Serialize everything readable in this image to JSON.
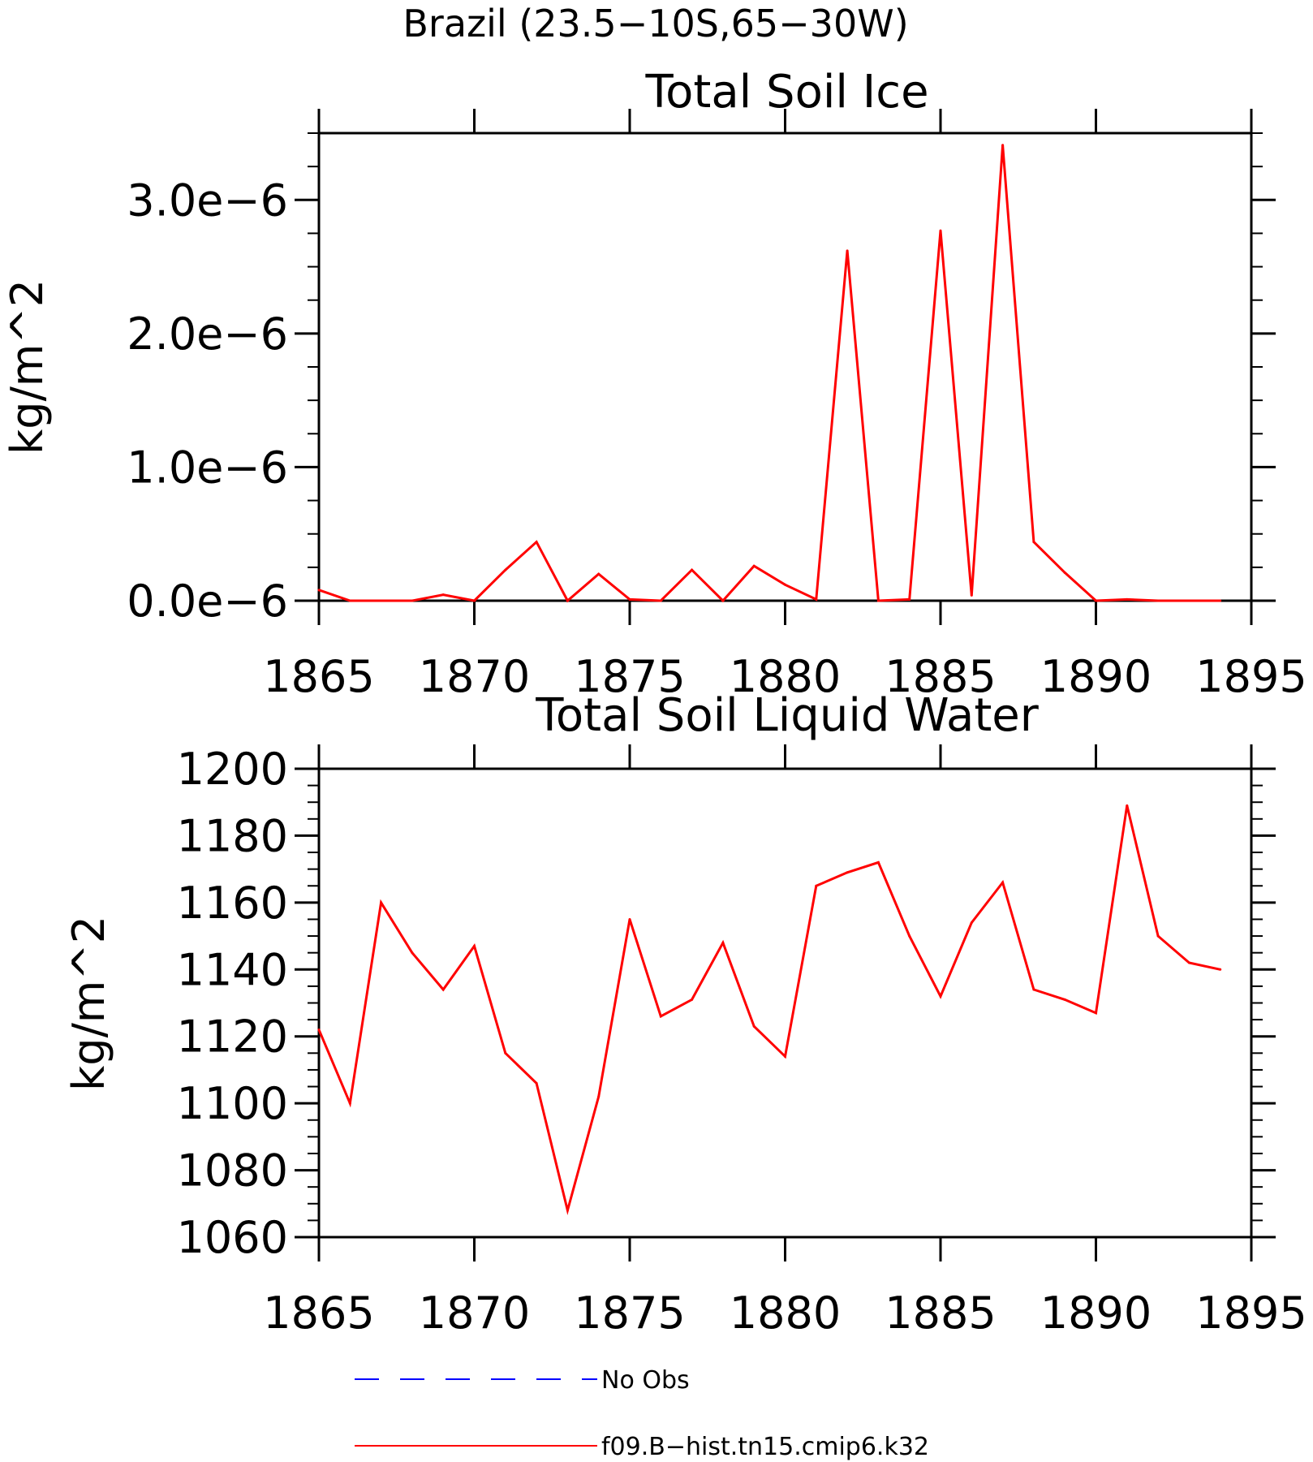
{
  "figure": {
    "title": "Brazil (23.5−10S,65−30W)"
  },
  "colors": {
    "model": "#ff0000",
    "obs": "#0000ff",
    "axis": "#000000"
  },
  "legend": {
    "items": [
      {
        "label": "No Obs",
        "style": "dashed",
        "color": "#0000ff"
      },
      {
        "label": "f09.B−hist.tn15.cmip6.k32",
        "style": "solid",
        "color": "#ff0000"
      }
    ]
  },
  "chart_data": [
    {
      "type": "line",
      "title": "Total Soil Ice",
      "ylabel": "kg/m^2",
      "xlabel": "",
      "xlim": [
        1865,
        1895
      ],
      "ylim": [
        0,
        3.5e-06
      ],
      "xticks": [
        1865,
        1870,
        1875,
        1880,
        1885,
        1890,
        1895
      ],
      "xtick_labels": [
        "1865",
        "1870",
        "1875",
        "1880",
        "1885",
        "1890",
        "1895"
      ],
      "yticks": [
        0,
        1e-06,
        2e-06,
        3e-06
      ],
      "ytick_labels": [
        "0.0e−6",
        "1.0e−6",
        "2.0e−6",
        "3.0e−6"
      ],
      "series": [
        {
          "name": "f09.B−hist.tn15.cmip6.k32",
          "x": [
            1865,
            1866,
            1867,
            1868,
            1869,
            1870,
            1871,
            1872,
            1873,
            1874,
            1875,
            1876,
            1877,
            1878,
            1879,
            1880,
            1881,
            1882,
            1883,
            1884,
            1885,
            1886,
            1887,
            1888,
            1889,
            1890,
            1891,
            1892,
            1893,
            1894
          ],
          "values": [
            8e-08,
            0,
            0,
            0,
            4.5e-08,
            0,
            2.3e-07,
            4.4e-07,
            0,
            2e-07,
            1e-08,
            0,
            2.3e-07,
            0,
            2.6e-07,
            1.2e-07,
            1e-08,
            2.62e-06,
            0,
            1e-08,
            2.77e-06,
            4e-08,
            3.41e-06,
            4.4e-07,
            2.1e-07,
            0,
            1e-08,
            0,
            0,
            0
          ]
        }
      ]
    },
    {
      "type": "line",
      "title": "Total Soil Liquid Water",
      "ylabel": "kg/m^2",
      "xlabel": "",
      "xlim": [
        1865,
        1895
      ],
      "ylim": [
        1060,
        1200
      ],
      "xticks": [
        1865,
        1870,
        1875,
        1880,
        1885,
        1890,
        1895
      ],
      "xtick_labels": [
        "1865",
        "1870",
        "1875",
        "1880",
        "1885",
        "1890",
        "1895"
      ],
      "yticks": [
        1060,
        1080,
        1100,
        1120,
        1140,
        1160,
        1180,
        1200
      ],
      "ytick_labels": [
        "1060",
        "1080",
        "1100",
        "1120",
        "1140",
        "1160",
        "1180",
        "1200"
      ],
      "series": [
        {
          "name": "f09.B−hist.tn15.cmip6.k32",
          "x": [
            1865,
            1866,
            1867,
            1868,
            1869,
            1870,
            1871,
            1872,
            1873,
            1874,
            1875,
            1876,
            1877,
            1878,
            1879,
            1880,
            1881,
            1882,
            1883,
            1884,
            1885,
            1886,
            1887,
            1888,
            1889,
            1890,
            1891,
            1892,
            1893,
            1894
          ],
          "values": [
            1122,
            1100,
            1160,
            1145,
            1134,
            1147,
            1115,
            1106,
            1068,
            1102,
            1155,
            1126,
            1131,
            1148,
            1123,
            1114,
            1165,
            1169,
            1172,
            1150,
            1132,
            1154,
            1166,
            1134,
            1131,
            1127,
            1189,
            1150,
            1142,
            1140
          ]
        }
      ]
    }
  ]
}
